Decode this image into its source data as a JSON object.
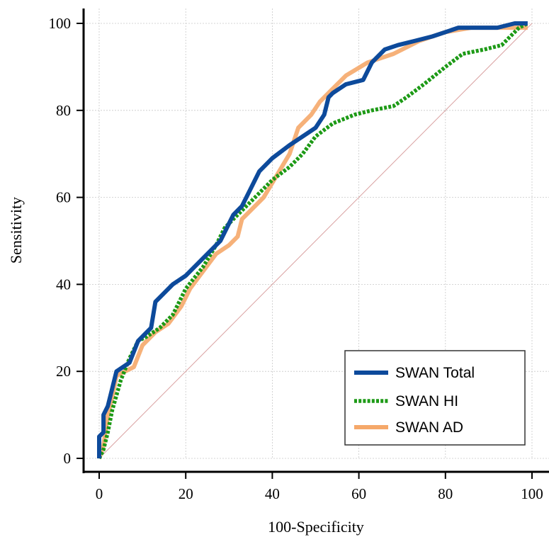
{
  "chart_data": {
    "type": "line",
    "title": "",
    "xlabel": "100-Specificity",
    "ylabel": "Sensitivity",
    "xlim": [
      0,
      100
    ],
    "ylim": [
      0,
      100
    ],
    "xticks": [
      "0",
      "20",
      "40",
      "60",
      "80",
      "100"
    ],
    "yticks": [
      "0",
      "20",
      "40",
      "60",
      "80",
      "100"
    ],
    "grid": true,
    "legend_position": "bottom-right",
    "reference_line": {
      "x": [
        0,
        100
      ],
      "y": [
        0,
        100
      ],
      "color": "#d9a0a0"
    },
    "series": [
      {
        "name": "SWAN Total",
        "color": "#0d4a9b",
        "style": "solid",
        "x": [
          0,
          0,
          1,
          1,
          2,
          3,
          4,
          7,
          9,
          12,
          13,
          15,
          17,
          20,
          23,
          26,
          28,
          31,
          33,
          35,
          37,
          40,
          44,
          47,
          50,
          52,
          53,
          54,
          57,
          61,
          63,
          66,
          69,
          73,
          77,
          80,
          83,
          87,
          92,
          96,
          99
        ],
        "y": [
          0,
          5,
          6,
          10,
          12,
          16,
          20,
          22,
          27,
          30,
          36,
          38,
          40,
          42,
          45,
          48,
          50,
          56,
          58,
          62,
          66,
          69,
          72,
          74,
          76,
          79,
          83,
          84,
          86,
          87,
          91,
          94,
          95,
          96,
          97,
          98,
          99,
          99,
          99,
          100,
          100
        ]
      },
      {
        "name": "SWAN HI",
        "color": "#1d9a16",
        "style": "dotted",
        "x": [
          0,
          1,
          2,
          3,
          5,
          7,
          9,
          11,
          14,
          17,
          20,
          24,
          27,
          29,
          32,
          36,
          40,
          44,
          47,
          50,
          54,
          59,
          63,
          68,
          71,
          75,
          80,
          84,
          89,
          93,
          97,
          99
        ],
        "y": [
          0,
          2,
          6,
          11,
          18,
          23,
          27,
          28,
          30,
          33,
          39,
          44,
          49,
          53,
          56,
          60,
          64,
          67,
          70,
          74,
          77,
          79,
          80,
          81,
          83,
          86,
          90,
          93,
          94,
          95,
          99,
          100
        ]
      },
      {
        "name": "SWAN AD",
        "color": "#f5a86a",
        "style": "solid",
        "x": [
          0,
          1,
          2,
          3,
          4,
          6,
          8,
          10,
          13,
          16,
          19,
          21,
          24,
          27,
          30,
          32,
          33,
          35,
          38,
          41,
          44,
          46,
          49,
          51,
          53,
          57,
          62,
          68,
          74,
          80,
          86,
          92,
          99
        ],
        "y": [
          0,
          3,
          10,
          14,
          19,
          20,
          21,
          26,
          29,
          31,
          35,
          39,
          43,
          47,
          49,
          51,
          55,
          57,
          60,
          65,
          70,
          76,
          79,
          82,
          84,
          88,
          91,
          93,
          96,
          98,
          99,
          99,
          99
        ]
      }
    ]
  }
}
